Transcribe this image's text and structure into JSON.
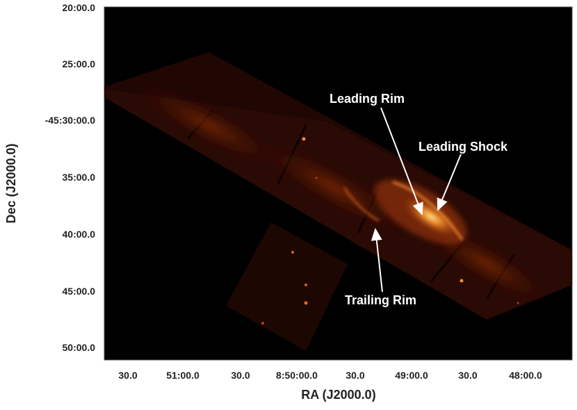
{
  "axes": {
    "ylabel": "Dec (J2000.0)",
    "xlabel": "RA (J2000.0)",
    "y_ticks": [
      "20:00.0",
      "25:00.0",
      "-45:30:00.0",
      "35:00.0",
      "40:00.0",
      "45:00.0",
      "50:00.0"
    ],
    "x_ticks": [
      "30.0",
      "51:00.0",
      "30.0",
      "8:50:00.0",
      "30.0",
      "49:00.0",
      "30.0",
      "48:00.0"
    ]
  },
  "annotations": {
    "leading_rim": "Leading Rim",
    "leading_shock": "Leading Shock",
    "trailing_rim": "Trailing Rim"
  },
  "colors": {
    "background": "#000000",
    "emission_dim": "#3a0d05",
    "emission_mid": "#b8420f",
    "emission_bright": "#ffd070",
    "annotation": "#ffffff"
  }
}
